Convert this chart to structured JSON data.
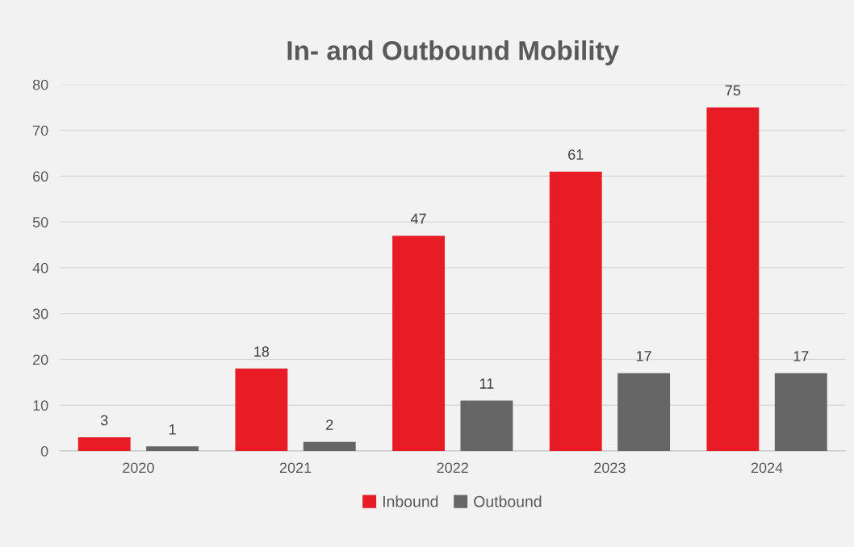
{
  "chart_data": {
    "type": "bar",
    "title": "In- and Outbound Mobility",
    "categories": [
      "2020",
      "2021",
      "2022",
      "2023",
      "2024"
    ],
    "series": [
      {
        "name": "Inbound",
        "color": "#e81c24",
        "values": [
          3,
          18,
          47,
          61,
          75
        ]
      },
      {
        "name": "Outbound",
        "color": "#666666",
        "values": [
          1,
          2,
          11,
          17,
          17
        ]
      }
    ],
    "ylim": [
      0,
      80
    ],
    "yticks": [
      0,
      10,
      20,
      30,
      40,
      50,
      60,
      70,
      80
    ],
    "grid": "y",
    "legend": "bottom",
    "data_labels": true
  }
}
